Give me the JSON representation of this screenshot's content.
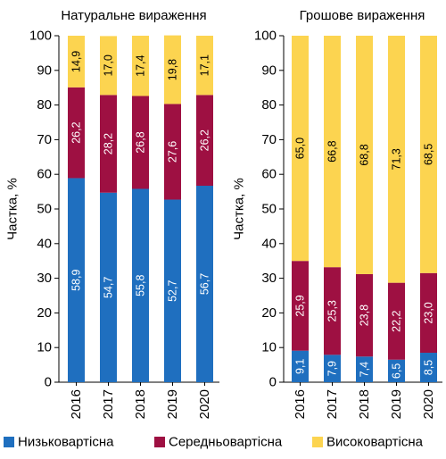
{
  "legend": [
    {
      "label": "Низьковартісна",
      "color": "#1f6fbf"
    },
    {
      "label": "Середньовартісна",
      "color": "#9e1042"
    },
    {
      "label": "Високовартісна",
      "color": "#fcd450"
    }
  ],
  "chart_data": [
    {
      "type": "bar",
      "stacked": true,
      "title": "Натуральне вираження",
      "xlabel": "",
      "ylabel": "Частка, %",
      "ylim": [
        0,
        100
      ],
      "yticks": [
        0,
        10,
        20,
        30,
        40,
        50,
        60,
        70,
        80,
        90,
        100
      ],
      "categories": [
        "2016",
        "2017",
        "2018",
        "2019",
        "2020"
      ],
      "series": [
        {
          "name": "Низьковартісна",
          "color": "#1f6fbf",
          "values": [
            58.9,
            54.7,
            55.8,
            52.7,
            56.7
          ],
          "labels": [
            "58,9",
            "54,7",
            "55,8",
            "52,7",
            "56,7"
          ]
        },
        {
          "name": "Середньовартісна",
          "color": "#9e1042",
          "values": [
            26.2,
            28.2,
            26.8,
            27.6,
            26.2
          ],
          "labels": [
            "26,2",
            "28,2",
            "26,8",
            "27,6",
            "26,2"
          ]
        },
        {
          "name": "Високовартісна",
          "color": "#fcd450",
          "values": [
            14.9,
            17.0,
            17.4,
            19.8,
            17.1
          ],
          "labels": [
            "14,9",
            "17,0",
            "17,4",
            "19,8",
            "17,1"
          ]
        }
      ]
    },
    {
      "type": "bar",
      "stacked": true,
      "title": "Грошове вираження",
      "xlabel": "",
      "ylabel": "Частка, %",
      "ylim": [
        0,
        100
      ],
      "yticks": [
        0,
        10,
        20,
        30,
        40,
        50,
        60,
        70,
        80,
        90,
        100
      ],
      "categories": [
        "2016",
        "2017",
        "2018",
        "2019",
        "2020"
      ],
      "series": [
        {
          "name": "Низьковартісна",
          "color": "#1f6fbf",
          "values": [
            9.1,
            7.9,
            7.4,
            6.5,
            8.5
          ],
          "labels": [
            "9,1",
            "7,9",
            "7,4",
            "6,5",
            "8,5"
          ]
        },
        {
          "name": "Середньовартісна",
          "color": "#9e1042",
          "values": [
            25.9,
            25.3,
            23.8,
            22.2,
            23.0
          ],
          "labels": [
            "25,9",
            "25,3",
            "23,8",
            "22,2",
            "23,0"
          ]
        },
        {
          "name": "Високовартісна",
          "color": "#fcd450",
          "values": [
            65.0,
            66.8,
            68.8,
            71.3,
            68.5
          ],
          "labels": [
            "65,0",
            "66,8",
            "68,8",
            "71,3",
            "68,5"
          ]
        }
      ]
    }
  ]
}
